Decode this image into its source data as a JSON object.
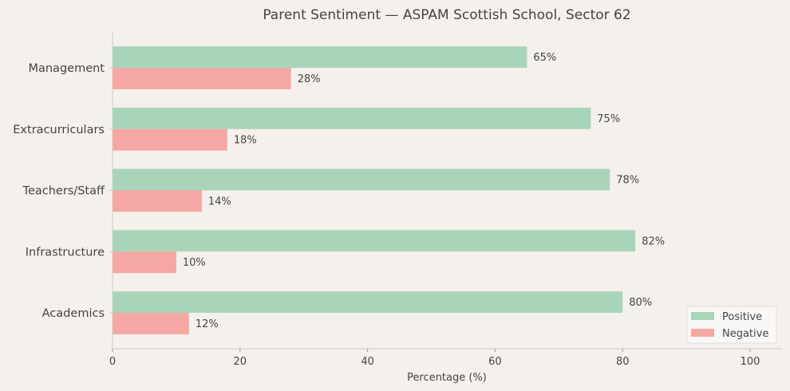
{
  "chart_data": {
    "type": "bar",
    "orientation": "horizontal",
    "title": "Parent Sentiment — ASPAM Scottish School, Sector 62",
    "xlabel": "Percentage (%)",
    "ylabel": "",
    "xlim": [
      0,
      105
    ],
    "xticks": [
      0,
      20,
      40,
      60,
      80,
      100
    ],
    "categories": [
      "Academics",
      "Infrastructure",
      "Teachers/Staff",
      "Extracurriculars",
      "Management"
    ],
    "series": [
      {
        "name": "Positive",
        "color": "#a8d5ba",
        "values": [
          80,
          82,
          78,
          75,
          65
        ]
      },
      {
        "name": "Negative",
        "color": "#f5a7a3",
        "values": [
          12,
          10,
          14,
          18,
          28
        ]
      }
    ],
    "value_label_suffix": "%",
    "legend_position": "lower-right",
    "grid": false
  }
}
